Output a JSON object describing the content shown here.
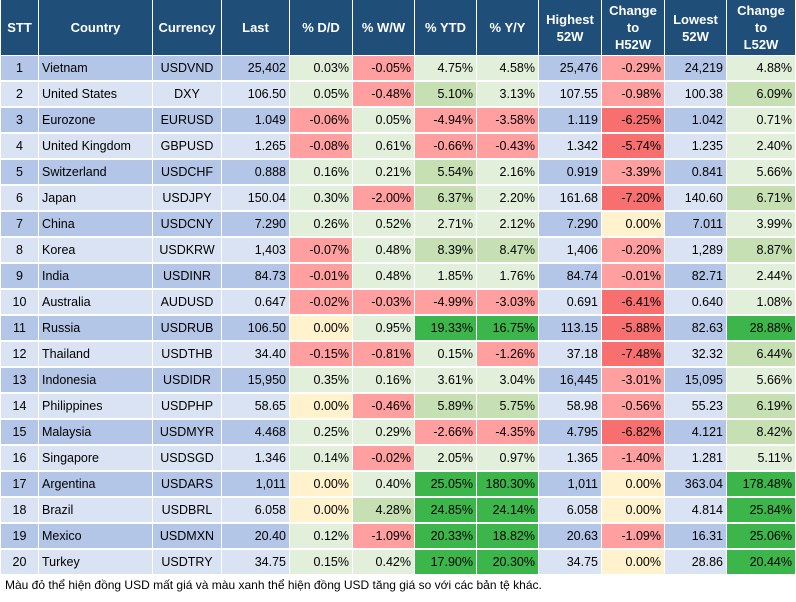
{
  "table": {
    "headers": [
      {
        "key": "stt",
        "text": "STT"
      },
      {
        "key": "country",
        "text": "Country"
      },
      {
        "key": "currency",
        "text": "Currency"
      },
      {
        "key": "last",
        "text": "Last"
      },
      {
        "key": "dd",
        "text": "% D/D"
      },
      {
        "key": "ww",
        "text": "% W/W"
      },
      {
        "key": "ytd",
        "text": "% YTD"
      },
      {
        "key": "yy",
        "text": "% Y/Y"
      },
      {
        "key": "high",
        "text": "Highest\n52W"
      },
      {
        "key": "chh",
        "text": "Change\nto\nH52W"
      },
      {
        "key": "low",
        "text": "Lowest\n52W"
      },
      {
        "key": "chl",
        "text": "Change\nto\nL52W"
      }
    ],
    "rows": [
      {
        "stt": "1",
        "country": "Vietnam",
        "currency": "USDVND",
        "last": "25,402",
        "dd": "0.03%",
        "ww": "-0.05%",
        "ytd": "4.75%",
        "yy": "4.58%",
        "high": "25,476",
        "chh": "-0.29%",
        "low": "24,219",
        "chl": "4.88%"
      },
      {
        "stt": "2",
        "country": "United States",
        "currency": "DXY",
        "last": "106.50",
        "dd": "0.05%",
        "ww": "-0.48%",
        "ytd": "5.10%",
        "yy": "3.13%",
        "high": "107.55",
        "chh": "-0.98%",
        "low": "100.38",
        "chl": "6.09%"
      },
      {
        "stt": "3",
        "country": "Eurozone",
        "currency": "EURUSD",
        "last": "1.049",
        "dd": "-0.06%",
        "ww": "0.05%",
        "ytd": "-4.94%",
        "yy": "-3.58%",
        "high": "1.119",
        "chh": "-6.25%",
        "low": "1.042",
        "chl": "0.71%"
      },
      {
        "stt": "4",
        "country": "United Kingdom",
        "currency": "GBPUSD",
        "last": "1.265",
        "dd": "-0.08%",
        "ww": "0.61%",
        "ytd": "-0.66%",
        "yy": "-0.43%",
        "high": "1.342",
        "chh": "-5.74%",
        "low": "1.235",
        "chl": "2.40%"
      },
      {
        "stt": "5",
        "country": "Switzerland",
        "currency": "USDCHF",
        "last": "0.888",
        "dd": "0.16%",
        "ww": "0.21%",
        "ytd": "5.54%",
        "yy": "2.16%",
        "high": "0.919",
        "chh": "-3.39%",
        "low": "0.841",
        "chl": "5.66%"
      },
      {
        "stt": "6",
        "country": "Japan",
        "currency": "USDJPY",
        "last": "150.04",
        "dd": "0.30%",
        "ww": "-2.00%",
        "ytd": "6.37%",
        "yy": "2.20%",
        "high": "161.68",
        "chh": "-7.20%",
        "low": "140.60",
        "chl": "6.71%"
      },
      {
        "stt": "7",
        "country": "China",
        "currency": "USDCNY",
        "last": "7.290",
        "dd": "0.26%",
        "ww": "0.52%",
        "ytd": "2.71%",
        "yy": "2.12%",
        "high": "7.290",
        "chh": "0.00%",
        "low": "7.011",
        "chl": "3.99%"
      },
      {
        "stt": "8",
        "country": "Korea",
        "currency": "USDKRW",
        "last": "1,403",
        "dd": "-0.07%",
        "ww": "0.48%",
        "ytd": "8.39%",
        "yy": "8.47%",
        "high": "1,406",
        "chh": "-0.20%",
        "low": "1,289",
        "chl": "8.87%"
      },
      {
        "stt": "9",
        "country": "India",
        "currency": "USDINR",
        "last": "84.73",
        "dd": "-0.01%",
        "ww": "0.48%",
        "ytd": "1.85%",
        "yy": "1.76%",
        "high": "84.74",
        "chh": "-0.01%",
        "low": "82.71",
        "chl": "2.44%"
      },
      {
        "stt": "10",
        "country": "Australia",
        "currency": "AUDUSD",
        "last": "0.647",
        "dd": "-0.02%",
        "ww": "-0.03%",
        "ytd": "-4.99%",
        "yy": "-3.03%",
        "high": "0.691",
        "chh": "-6.41%",
        "low": "0.640",
        "chl": "1.08%"
      },
      {
        "stt": "11",
        "country": "Russia",
        "currency": "USDRUB",
        "last": "106.50",
        "dd": "0.00%",
        "ww": "0.95%",
        "ytd": "19.33%",
        "yy": "16.75%",
        "high": "113.15",
        "chh": "-5.88%",
        "low": "82.63",
        "chl": "28.88%"
      },
      {
        "stt": "12",
        "country": "Thailand",
        "currency": "USDTHB",
        "last": "34.40",
        "dd": "-0.15%",
        "ww": "-0.81%",
        "ytd": "0.15%",
        "yy": "-1.26%",
        "high": "37.18",
        "chh": "-7.48%",
        "low": "32.32",
        "chl": "6.44%"
      },
      {
        "stt": "13",
        "country": "Indonesia",
        "currency": "USDIDR",
        "last": "15,950",
        "dd": "0.35%",
        "ww": "0.16%",
        "ytd": "3.61%",
        "yy": "3.04%",
        "high": "16,445",
        "chh": "-3.01%",
        "low": "15,095",
        "chl": "5.66%"
      },
      {
        "stt": "14",
        "country": "Philippines",
        "currency": "USDPHP",
        "last": "58.65",
        "dd": "0.00%",
        "ww": "-0.46%",
        "ytd": "5.89%",
        "yy": "5.75%",
        "high": "58.98",
        "chh": "-0.56%",
        "low": "55.23",
        "chl": "6.19%"
      },
      {
        "stt": "15",
        "country": "Malaysia",
        "currency": "USDMYR",
        "last": "4.468",
        "dd": "0.25%",
        "ww": "0.29%",
        "ytd": "-2.66%",
        "yy": "-4.35%",
        "high": "4.795",
        "chh": "-6.82%",
        "low": "4.121",
        "chl": "8.42%"
      },
      {
        "stt": "16",
        "country": "Singapore",
        "currency": "USDSGD",
        "last": "1.346",
        "dd": "0.14%",
        "ww": "-0.02%",
        "ytd": "2.05%",
        "yy": "0.97%",
        "high": "1.365",
        "chh": "-1.40%",
        "low": "1.281",
        "chl": "5.11%"
      },
      {
        "stt": "17",
        "country": "Argentina",
        "currency": "USDARS",
        "last": "1,011",
        "dd": "0.00%",
        "ww": "0.40%",
        "ytd": "25.05%",
        "yy": "180.30%",
        "high": "1,011",
        "chh": "0.00%",
        "low": "363.04",
        "chl": "178.48%"
      },
      {
        "stt": "18",
        "country": "Brazil",
        "currency": "USDBRL",
        "last": "6.058",
        "dd": "0.00%",
        "ww": "4.28%",
        "ytd": "24.85%",
        "yy": "24.14%",
        "high": "6.058",
        "chh": "0.00%",
        "low": "4.814",
        "chl": "25.84%"
      },
      {
        "stt": "19",
        "country": "Mexico",
        "currency": "USDMXN",
        "last": "20.40",
        "dd": "0.12%",
        "ww": "-1.09%",
        "ytd": "20.33%",
        "yy": "18.82%",
        "high": "20.63",
        "chh": "-1.09%",
        "low": "16.31",
        "chl": "25.06%"
      },
      {
        "stt": "20",
        "country": "Turkey",
        "currency": "USDTRY",
        "last": "34.75",
        "dd": "0.15%",
        "ww": "0.42%",
        "ytd": "17.90%",
        "yy": "20.30%",
        "high": "34.75",
        "chh": "0.00%",
        "low": "28.86",
        "chl": "20.44%"
      }
    ]
  },
  "note": "Màu đỏ thể hiện đồng USD mất giá và màu xanh thể hiện đồng USD tăng giá so với các bản tệ khác.",
  "colors": {
    "header_bg": "#1f4e79",
    "row_odd": "#b4c6e7",
    "row_even": "#dae3f3",
    "negative": "#ff9f9f",
    "negative_strong": "#f86f6f",
    "positive": "#e2efda",
    "positive_mid": "#c6e0b4",
    "positive_strong": "#3cb54a",
    "neutral": "#fff2cc"
  }
}
